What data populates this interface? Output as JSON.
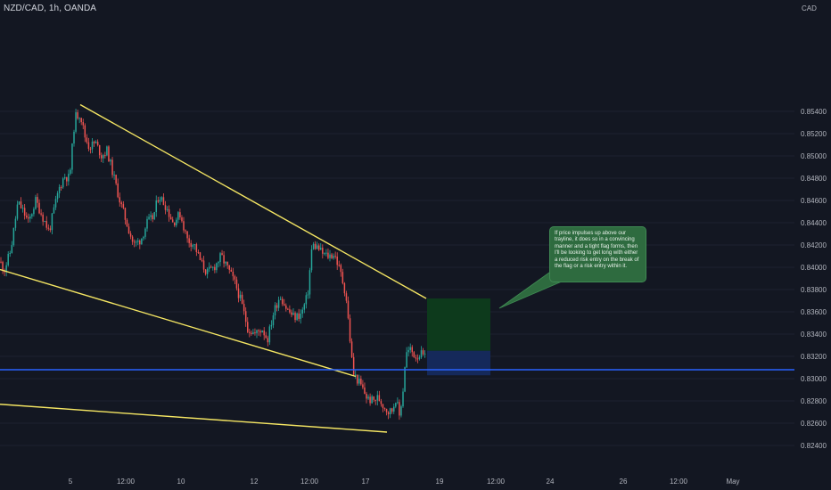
{
  "header": {
    "symbol": "NZD/CAD, 1h, OANDA",
    "currency": "CAD"
  },
  "annotation": {
    "text": "If price impulses up above our trayline, it does so in a convincing manner and a tight flag forms, then I'll be looking to get long with either a reduced risk entry on the break of the flag or a risk entry within it."
  },
  "colors": {
    "background": "#131722",
    "up_candle": "#26a69a",
    "down_candle": "#ef5350",
    "trendline": "#f5e663",
    "horizontal_level": "#2962ff",
    "profit_zone": "#0d3a1c",
    "risk_zone": "#15295a",
    "callout_fill": "#2e6b3f",
    "axis_text": "#b2b5be"
  },
  "chart_data": {
    "type": "candlestick",
    "symbol": "NZD/CAD",
    "timeframe": "1h",
    "y_axis_label": "CAD",
    "ylim": [
      0.8225,
      0.8555
    ],
    "y_ticks": [
      "0.85400",
      "0.85200",
      "0.85000",
      "0.84800",
      "0.84600",
      "0.84400",
      "0.84200",
      "0.84000",
      "0.83800",
      "0.83600",
      "0.83400",
      "0.83200",
      "0.83000",
      "0.82800",
      "0.82600",
      "0.82400"
    ],
    "x_ticks": [
      "5",
      "12:00",
      "10",
      "12",
      "12:00",
      "17",
      "19",
      "12:00",
      "24",
      "26",
      "12:00",
      "May"
    ],
    "price_path": [
      [
        0,
        0.8405
      ],
      [
        5,
        0.8398
      ],
      [
        12,
        0.8415
      ],
      [
        20,
        0.8458
      ],
      [
        25,
        0.8452
      ],
      [
        32,
        0.844
      ],
      [
        40,
        0.846
      ],
      [
        48,
        0.8445
      ],
      [
        55,
        0.8432
      ],
      [
        60,
        0.845
      ],
      [
        66,
        0.847
      ],
      [
        72,
        0.8482
      ],
      [
        78,
        0.848
      ],
      [
        84,
        0.8535
      ],
      [
        90,
        0.8538
      ],
      [
        95,
        0.8518
      ],
      [
        100,
        0.8508
      ],
      [
        107,
        0.8512
      ],
      [
        114,
        0.85
      ],
      [
        120,
        0.8505
      ],
      [
        128,
        0.848
      ],
      [
        135,
        0.8458
      ],
      [
        142,
        0.844
      ],
      [
        150,
        0.842
      ],
      [
        158,
        0.8425
      ],
      [
        165,
        0.844
      ],
      [
        172,
        0.8445
      ],
      [
        178,
        0.8465
      ],
      [
        186,
        0.8455
      ],
      [
        194,
        0.844
      ],
      [
        202,
        0.8448
      ],
      [
        210,
        0.8425
      ],
      [
        218,
        0.842
      ],
      [
        225,
        0.8405
      ],
      [
        232,
        0.8395
      ],
      [
        240,
        0.84
      ],
      [
        248,
        0.841
      ],
      [
        256,
        0.8398
      ],
      [
        264,
        0.8385
      ],
      [
        270,
        0.837
      ],
      [
        278,
        0.8345
      ],
      [
        286,
        0.834
      ],
      [
        294,
        0.8345
      ],
      [
        300,
        0.8335
      ],
      [
        307,
        0.836
      ],
      [
        314,
        0.8375
      ],
      [
        322,
        0.8362
      ],
      [
        330,
        0.8355
      ],
      [
        338,
        0.8358
      ],
      [
        345,
        0.8375
      ],
      [
        350,
        0.842
      ],
      [
        356,
        0.8418
      ],
      [
        362,
        0.8412
      ],
      [
        368,
        0.841
      ],
      [
        375,
        0.8412
      ],
      [
        382,
        0.8395
      ],
      [
        388,
        0.8375
      ],
      [
        392,
        0.834
      ],
      [
        396,
        0.8305
      ],
      [
        400,
        0.83
      ],
      [
        406,
        0.8292
      ],
      [
        412,
        0.8282
      ],
      [
        418,
        0.828
      ],
      [
        424,
        0.8283
      ],
      [
        430,
        0.8276
      ],
      [
        436,
        0.827
      ],
      [
        440,
        0.8272
      ],
      [
        444,
        0.8283
      ],
      [
        448,
        0.8266
      ],
      [
        452,
        0.829
      ],
      [
        455,
        0.8322
      ],
      [
        460,
        0.8326
      ],
      [
        466,
        0.832
      ],
      [
        472,
        0.8322
      ],
      [
        477,
        0.8318
      ]
    ],
    "trendlines": [
      {
        "from": [
          90,
          0.8546
        ],
        "to": [
          478,
          0.8372
        ]
      },
      {
        "from": [
          0,
          0.8398
        ],
        "to": [
          399,
          0.8302
        ]
      },
      {
        "from": [
          0,
          0.8277
        ],
        "to": [
          434,
          0.8252
        ]
      }
    ],
    "horizontal_level": 0.8308,
    "long_position": {
      "target": 0.8372,
      "entry": 0.8325,
      "stop": 0.8303
    }
  }
}
